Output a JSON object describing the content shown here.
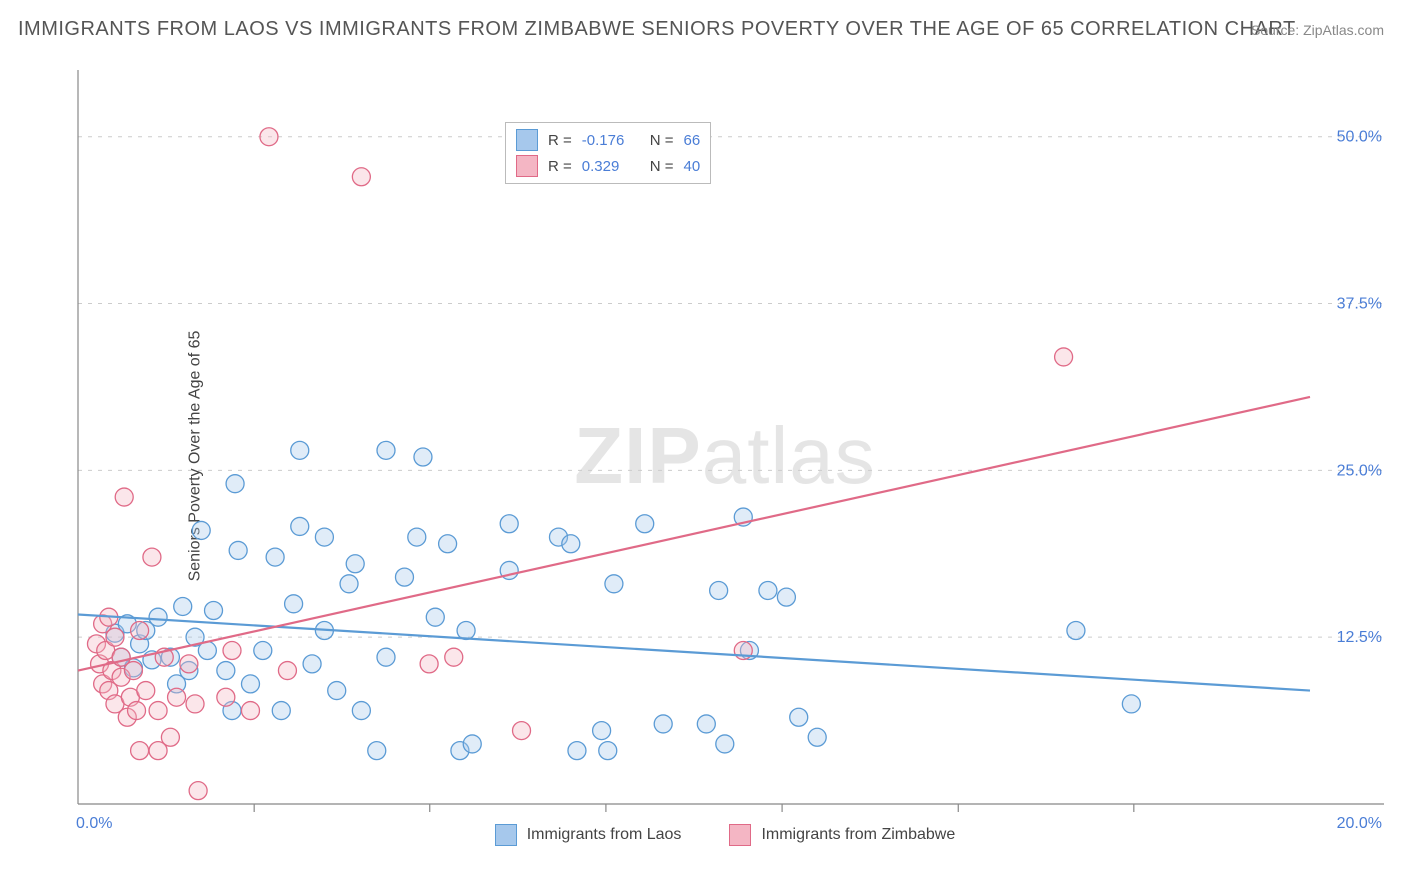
{
  "title": "IMMIGRANTS FROM LAOS VS IMMIGRANTS FROM ZIMBABWE SENIORS POVERTY OVER THE AGE OF 65 CORRELATION CHART",
  "source_label": "Source: ",
  "source_name": "ZipAtlas.com",
  "y_axis_label": "Seniors Poverty Over the Age of 65",
  "watermark_bold": "ZIP",
  "watermark_rest": "atlas",
  "chart": {
    "type": "scatter",
    "background_color": "#ffffff",
    "grid_color": "#cccccc",
    "axis_color": "#888888",
    "tick_label_color": "#4a7dd6",
    "xlim": [
      0,
      20
    ],
    "ylim": [
      0,
      55
    ],
    "y_ticks": [
      12.5,
      25.0,
      37.5,
      50.0
    ],
    "y_tick_labels": [
      "12.5%",
      "25.0%",
      "37.5%",
      "50.0%"
    ],
    "x_ticks_minor": [
      2.86,
      5.71,
      8.57,
      11.43,
      14.29,
      17.14
    ],
    "x_axis_left_label": "0.0%",
    "x_axis_right_label": "20.0%",
    "marker_radius": 9,
    "marker_fill_opacity": 0.35,
    "marker_stroke_width": 1.3,
    "line_width": 2.2,
    "series": [
      {
        "name": "Immigrants from Laos",
        "color": "#5b9bd5",
        "fill": "#a6c8ec",
        "R": "-0.176",
        "N": "66",
        "trend": {
          "x1": 0,
          "y1": 14.2,
          "x2": 20,
          "y2": 8.5
        },
        "points": [
          [
            0.6,
            12.8
          ],
          [
            0.7,
            11.0
          ],
          [
            0.8,
            13.5
          ],
          [
            0.9,
            10.2
          ],
          [
            1.0,
            12.0
          ],
          [
            1.1,
            13.0
          ],
          [
            1.2,
            10.8
          ],
          [
            1.3,
            14.0
          ],
          [
            1.5,
            11.0
          ],
          [
            1.6,
            9.0
          ],
          [
            1.7,
            14.8
          ],
          [
            1.8,
            10.0
          ],
          [
            1.9,
            12.5
          ],
          [
            2.0,
            20.5
          ],
          [
            2.1,
            11.5
          ],
          [
            2.2,
            14.5
          ],
          [
            2.4,
            10.0
          ],
          [
            2.5,
            7.0
          ],
          [
            2.55,
            24.0
          ],
          [
            2.6,
            19.0
          ],
          [
            2.8,
            9.0
          ],
          [
            3.0,
            11.5
          ],
          [
            3.2,
            18.5
          ],
          [
            3.3,
            7.0
          ],
          [
            3.5,
            15.0
          ],
          [
            3.6,
            20.8
          ],
          [
            3.6,
            26.5
          ],
          [
            3.8,
            10.5
          ],
          [
            4.0,
            13.0
          ],
          [
            4.0,
            20.0
          ],
          [
            4.2,
            8.5
          ],
          [
            4.4,
            16.5
          ],
          [
            4.5,
            18.0
          ],
          [
            4.6,
            7.0
          ],
          [
            4.85,
            4.0
          ],
          [
            5.0,
            11.0
          ],
          [
            5.0,
            26.5
          ],
          [
            5.3,
            17.0
          ],
          [
            5.5,
            20.0
          ],
          [
            5.8,
            14.0
          ],
          [
            5.6,
            26.0
          ],
          [
            6.0,
            19.5
          ],
          [
            6.2,
            4.0
          ],
          [
            6.3,
            13.0
          ],
          [
            6.4,
            4.5
          ],
          [
            7.0,
            21.0
          ],
          [
            7.0,
            17.5
          ],
          [
            7.8,
            20.0
          ],
          [
            8.0,
            19.5
          ],
          [
            8.1,
            4.0
          ],
          [
            8.5,
            5.5
          ],
          [
            8.6,
            4.0
          ],
          [
            8.7,
            16.5
          ],
          [
            9.2,
            21.0
          ],
          [
            9.5,
            6.0
          ],
          [
            10.2,
            6.0
          ],
          [
            10.4,
            16.0
          ],
          [
            10.5,
            4.5
          ],
          [
            10.8,
            21.5
          ],
          [
            11.5,
            15.5
          ],
          [
            11.7,
            6.5
          ],
          [
            11.2,
            16.0
          ],
          [
            16.2,
            13.0
          ],
          [
            17.1,
            7.5
          ],
          [
            12.0,
            5.0
          ],
          [
            10.9,
            11.5
          ]
        ]
      },
      {
        "name": "Immigrants from Zimbabwe",
        "color": "#e06a87",
        "fill": "#f4b6c4",
        "R": "0.329",
        "N": "40",
        "trend": {
          "x1": 0,
          "y1": 10.0,
          "x2": 20,
          "y2": 30.5
        },
        "points": [
          [
            0.3,
            12.0
          ],
          [
            0.35,
            10.5
          ],
          [
            0.4,
            13.5
          ],
          [
            0.4,
            9.0
          ],
          [
            0.45,
            11.5
          ],
          [
            0.5,
            8.5
          ],
          [
            0.5,
            14.0
          ],
          [
            0.55,
            10.0
          ],
          [
            0.6,
            7.5
          ],
          [
            0.6,
            12.5
          ],
          [
            0.7,
            9.5
          ],
          [
            0.7,
            11.0
          ],
          [
            0.75,
            23.0
          ],
          [
            0.8,
            6.5
          ],
          [
            0.85,
            8.0
          ],
          [
            0.9,
            10.0
          ],
          [
            0.95,
            7.0
          ],
          [
            1.0,
            13.0
          ],
          [
            1.0,
            4.0
          ],
          [
            1.1,
            8.5
          ],
          [
            1.2,
            18.5
          ],
          [
            1.3,
            7.0
          ],
          [
            1.3,
            4.0
          ],
          [
            1.4,
            11.0
          ],
          [
            1.5,
            5.0
          ],
          [
            1.6,
            8.0
          ],
          [
            1.8,
            10.5
          ],
          [
            1.9,
            7.5
          ],
          [
            1.95,
            1.0
          ],
          [
            2.4,
            8.0
          ],
          [
            2.5,
            11.5
          ],
          [
            2.8,
            7.0
          ],
          [
            3.1,
            50.0
          ],
          [
            3.4,
            10.0
          ],
          [
            4.6,
            47.0
          ],
          [
            5.7,
            10.5
          ],
          [
            6.1,
            11.0
          ],
          [
            7.2,
            5.5
          ],
          [
            10.8,
            11.5
          ],
          [
            16.0,
            33.5
          ]
        ]
      }
    ]
  },
  "legend_top": {
    "r_label": "R =",
    "n_label": "N ="
  },
  "legend_bottom": {
    "series1_label": "Immigrants from Laos",
    "series2_label": "Immigrants from Zimbabwe"
  }
}
